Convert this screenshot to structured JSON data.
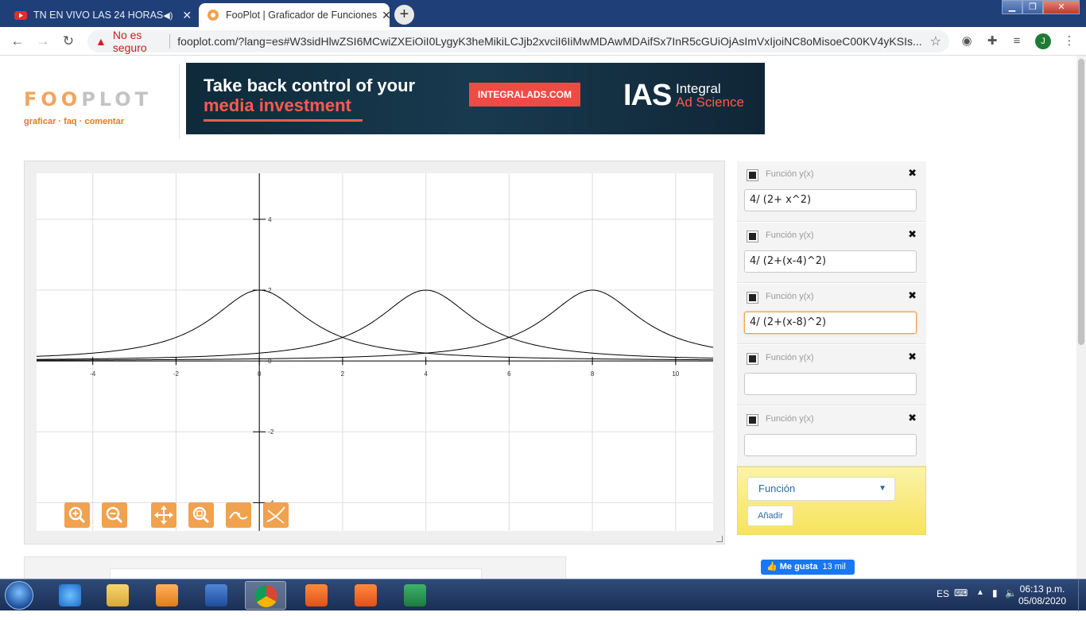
{
  "browser": {
    "tabs": [
      {
        "title": "TN EN VIVO LAS 24 HORAS",
        "active": false,
        "icon": "youtube-icon"
      },
      {
        "title": "FooPlot | Graficador de Funciones",
        "active": true,
        "icon": "fooplot-icon"
      }
    ],
    "address": {
      "security_label": "No es seguro",
      "url": "fooplot.com/?lang=es#W3sidHlwZSI6MCwiZXEiOiI0LygyK3heMikiLCJjb2xvciI6IiMwMDAwMDAifSx7InR5cGUiOjAsImVxIjoiNC8oMisoeC00KV4yKSIs..."
    },
    "profile_initial": "J"
  },
  "site": {
    "logo_fo": "FOO",
    "logo_plot": "PLOT",
    "nav": [
      "graficar",
      "faq",
      "comentar"
    ],
    "nav_sep": "·"
  },
  "ad": {
    "line1": "Take back control of your",
    "line2": "media investment",
    "button": "INTEGRALADS.COM",
    "brand": "IAS",
    "brand_line1": "Integral",
    "brand_line2": "Ad Science"
  },
  "functions": [
    {
      "label": "Función y(x)",
      "expr": "4/ (2+ x^2)",
      "focused": false
    },
    {
      "label": "Función y(x)",
      "expr": "4/ (2+(x-4)^2)",
      "focused": false
    },
    {
      "label": "Función y(x)",
      "expr": "4/ (2+(x-8)^2)",
      "focused": true
    },
    {
      "label": "Función y(x)",
      "expr": "",
      "focused": false
    },
    {
      "label": "Función y(x)",
      "expr": "",
      "focused": false
    }
  ],
  "add_panel": {
    "select_value": "Función",
    "add_button": "Añadir"
  },
  "fb": {
    "label": "Me gusta",
    "count": "13 mil"
  },
  "chart_data": {
    "type": "line",
    "xlim": [
      -5.35,
      10.9
    ],
    "ylim": [
      -4.8,
      5.3
    ],
    "x_ticks": [
      -4,
      -2,
      0,
      2,
      4,
      6,
      8,
      10
    ],
    "y_ticks": [
      4,
      2,
      0,
      -2,
      -4
    ],
    "series": [
      {
        "expr": "4/(2+x^2)",
        "peak_x": 0,
        "peak_y": 2
      },
      {
        "expr": "4/(2+(x-4)^2)",
        "peak_x": 4,
        "peak_y": 2
      },
      {
        "expr": "4/(2+(x-8)^2)",
        "peak_x": 8,
        "peak_y": 2
      }
    ],
    "grid": true,
    "grid_color": "#dddddd",
    "curve_color": "#000000"
  },
  "taskbar": {
    "language": "ES",
    "time": "06:13 p.m.",
    "date": "05/08/2020"
  },
  "colors": {
    "accent": "#f0a24f",
    "nav_link": "#e07b1c",
    "tab_strip": "#1f3f78"
  }
}
